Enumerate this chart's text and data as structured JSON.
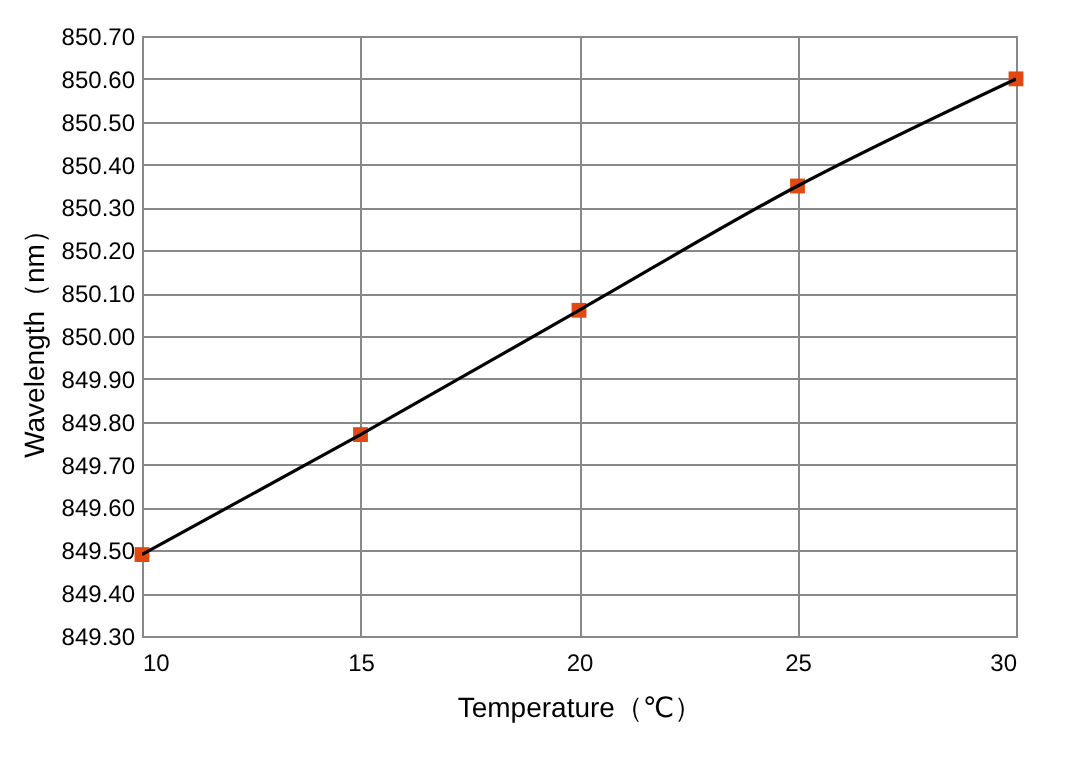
{
  "chart_data": {
    "type": "line",
    "xlabel": "Temperature（℃）",
    "ylabel": "Wavelength（nm）",
    "x": [
      10,
      15,
      20,
      25,
      30
    ],
    "series": [
      {
        "color": "#000000",
        "marker": "none",
        "values": [
          849.49,
          849.77,
          850.06,
          850.35,
          850.6
        ]
      },
      {
        "type": "scatter",
        "color": "#e04a10",
        "marker": "square",
        "values": [
          849.49,
          849.77,
          850.06,
          850.35,
          850.6
        ]
      }
    ],
    "xlim": [
      10,
      30
    ],
    "xticks": [
      10,
      15,
      20,
      25,
      30
    ],
    "ylim": [
      849.3,
      850.7
    ],
    "yticks": [
      {
        "value": 849.3,
        "label": "849.30"
      },
      {
        "value": 849.4,
        "label": "849.40"
      },
      {
        "value": 849.5,
        "label": "849.50"
      },
      {
        "value": 849.6,
        "label": "849.60"
      },
      {
        "value": 849.7,
        "label": "849.70"
      },
      {
        "value": 849.8,
        "label": "849.80"
      },
      {
        "value": 849.9,
        "label": "849.90"
      },
      {
        "value": 850.0,
        "label": "850.00"
      },
      {
        "value": 850.1,
        "label": "850.10"
      },
      {
        "value": 850.2,
        "label": "850.20"
      },
      {
        "value": 850.3,
        "label": "850.30"
      },
      {
        "value": 850.4,
        "label": "850.40"
      },
      {
        "value": 850.5,
        "label": "850.50"
      },
      {
        "value": 850.6,
        "label": "850.60"
      },
      {
        "value": 850.7,
        "label": "850.70"
      }
    ],
    "grid": true
  }
}
